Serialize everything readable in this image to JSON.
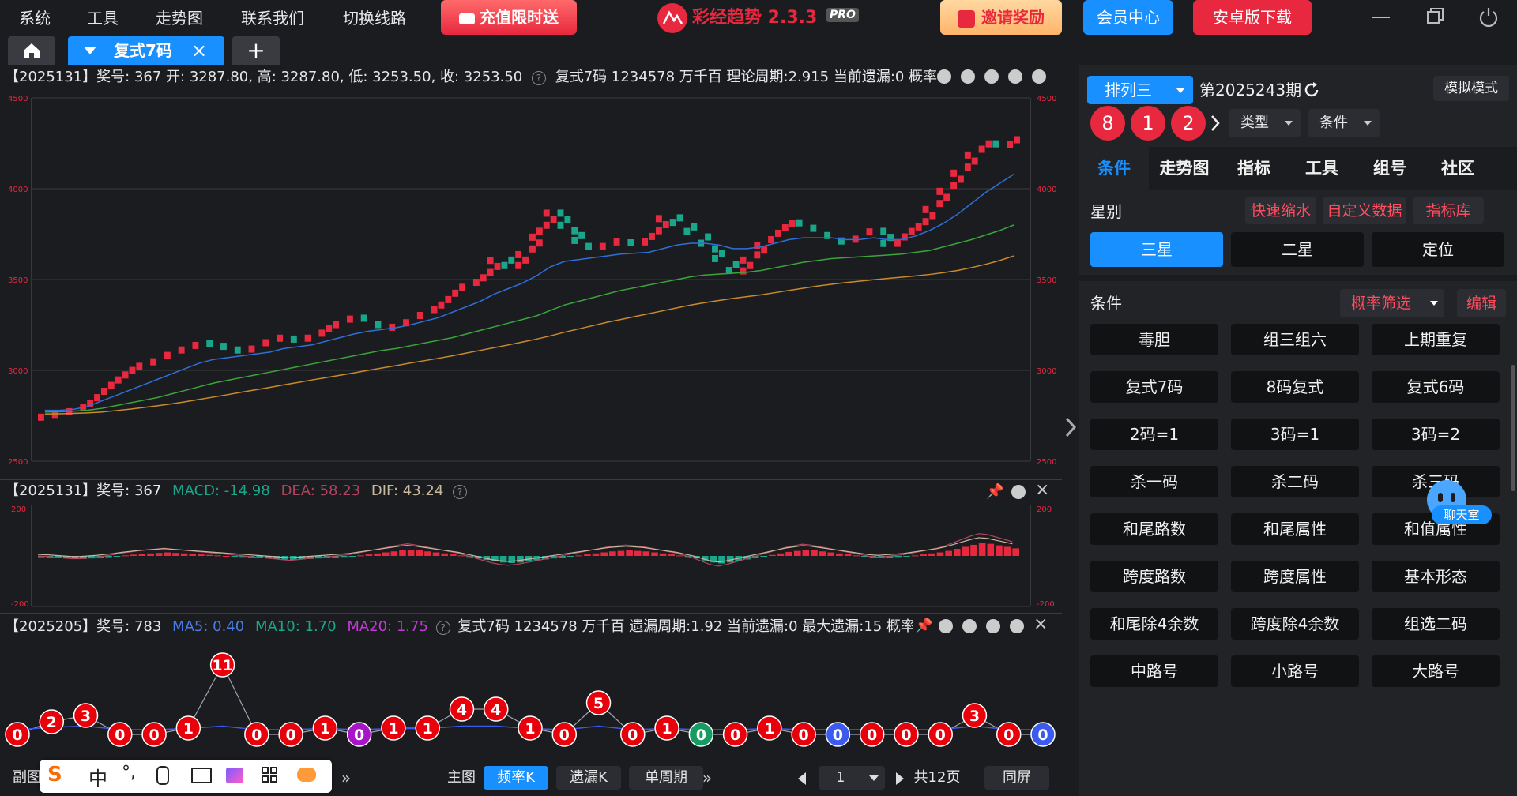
{
  "menu": [
    "系统",
    "工具",
    "走势图",
    "联系我们",
    "切换线路"
  ],
  "promo_recharge": "充值限时送",
  "app_title": "彩经趋势 2.3.3",
  "app_badge": "PRO",
  "promo_invite": "邀请奖励",
  "member_center": "会员中心",
  "android_download": "安卓版下载",
  "tabs": {
    "active_label": "复式7码",
    "add_label": "+"
  },
  "main_chart": {
    "header": "【2025131】奖号: 367  开: 3287.80, 高: 3287.80, 低: 3253.50, 收: 3253.50",
    "header_right": "复式7码  1234578  万千百  理论周期:2.915  当前遗漏:0  概率:",
    "y_ticks": [
      "4500",
      "4000",
      "3500",
      "3000",
      "2500"
    ]
  },
  "macd_chart": {
    "header_prefix": "【2025131】奖号: 367",
    "macd": "MACD: -14.98",
    "dea": "DEA: 58.23",
    "dif": "DIF: 43.24",
    "y_ticks": [
      "200",
      "-200"
    ]
  },
  "omit_chart": {
    "header_prefix": "【2025205】奖号: 783",
    "ma5": "MA5: 0.40",
    "ma10": "MA10: 1.70",
    "ma20": "MA20: 1.75",
    "header_right": "复式7码  1234578  万千百  遗漏周期:1.92  当前遗漏:0  最大遗漏:15  概率:"
  },
  "chart_data": [
    {
      "type": "line",
      "title": "",
      "y_ticks": [
        2500,
        3000,
        3500,
        4000,
        4500
      ],
      "ylim": [
        2500,
        4500
      ],
      "series": [
        {
          "values": [
            2750,
            2760,
            2780,
            2830,
            2900,
            2960,
            3010,
            3030,
            3060,
            3100,
            3120,
            3150,
            3140,
            3120,
            3100,
            3130,
            3170,
            3180,
            3160,
            3190,
            3240,
            3260,
            3300,
            3270,
            3230,
            3240,
            3280,
            3320,
            3370,
            3440,
            3470,
            3520,
            3620,
            3560,
            3650,
            3780,
            3880,
            3780,
            3700,
            3660,
            3700,
            3710,
            3690,
            3750,
            3850,
            3800,
            3750,
            3680,
            3600,
            3530,
            3620,
            3700,
            3770,
            3820,
            3800,
            3760,
            3720,
            3700,
            3740,
            3780,
            3680,
            3750,
            3800,
            3900,
            4000,
            4100,
            4200,
            4260,
            4230,
            4280
          ]
        },
        {
          "values": [
            2780,
            2780,
            2785,
            2800,
            2830,
            2860,
            2890,
            2920,
            2950,
            2980,
            3010,
            3040,
            3060,
            3070,
            3080,
            3090,
            3100,
            3120,
            3130,
            3140,
            3160,
            3180,
            3200,
            3215,
            3225,
            3235,
            3250,
            3270,
            3290,
            3320,
            3350,
            3380,
            3420,
            3450,
            3480,
            3520,
            3570,
            3600,
            3610,
            3620,
            3630,
            3640,
            3645,
            3650,
            3670,
            3690,
            3700,
            3700,
            3690,
            3670,
            3670,
            3680,
            3700,
            3720,
            3730,
            3730,
            3730,
            3720,
            3720,
            3730,
            3720,
            3720,
            3740,
            3770,
            3810,
            3860,
            3920,
            3980,
            4030,
            4080
          ]
        },
        {
          "values": [
            2770,
            2772,
            2775,
            2780,
            2790,
            2805,
            2820,
            2835,
            2850,
            2870,
            2890,
            2910,
            2930,
            2945,
            2960,
            2975,
            2990,
            3005,
            3020,
            3035,
            3050,
            3065,
            3080,
            3095,
            3110,
            3120,
            3135,
            3150,
            3165,
            3180,
            3200,
            3220,
            3240,
            3260,
            3280,
            3300,
            3330,
            3360,
            3380,
            3400,
            3420,
            3440,
            3455,
            3470,
            3485,
            3500,
            3515,
            3525,
            3530,
            3535,
            3540,
            3550,
            3565,
            3580,
            3595,
            3605,
            3615,
            3620,
            3625,
            3630,
            3635,
            3640,
            3650,
            3660,
            3680,
            3700,
            3720,
            3745,
            3770,
            3800
          ]
        },
        {
          "values": [
            2760,
            2761,
            2763,
            2766,
            2770,
            2778,
            2786,
            2795,
            2805,
            2815,
            2827,
            2840,
            2853,
            2866,
            2880,
            2893,
            2906,
            2920,
            2933,
            2947,
            2960,
            2973,
            2986,
            3000,
            3013,
            3026,
            3040,
            3053,
            3066,
            3080,
            3095,
            3110,
            3125,
            3140,
            3156,
            3172,
            3190,
            3210,
            3228,
            3246,
            3264,
            3280,
            3296,
            3312,
            3328,
            3344,
            3360,
            3373,
            3385,
            3396,
            3406,
            3416,
            3428,
            3440,
            3452,
            3464,
            3474,
            3483,
            3491,
            3499,
            3506,
            3513,
            3520,
            3528,
            3538,
            3550,
            3566,
            3584,
            3605,
            3630
          ]
        }
      ]
    },
    {
      "type": "bar",
      "title": "",
      "y_ticks": [
        -200,
        200
      ],
      "ylim": [
        -200,
        200
      ],
      "values": [
        -5,
        -6,
        -8,
        -10,
        -12,
        -12,
        -10,
        -8,
        -5,
        -2,
        2,
        5,
        8,
        10,
        12,
        14,
        12,
        10,
        8,
        6,
        4,
        2,
        0,
        -2,
        -4,
        -6,
        -8,
        -10,
        -12,
        -14,
        -16,
        -14,
        -12,
        -10,
        -8,
        -6,
        -4,
        -2,
        2,
        6,
        10,
        14,
        18,
        22,
        25,
        22,
        18,
        14,
        10,
        6,
        2,
        -4,
        -10,
        -16,
        -22,
        -26,
        -28,
        -26,
        -22,
        -18,
        -14,
        -10,
        -6,
        -2,
        2,
        6,
        10,
        14,
        18,
        20,
        22,
        20,
        18,
        14,
        10,
        6,
        2,
        -4,
        -10,
        -18,
        -26,
        -30,
        -26,
        -20,
        -14,
        -8,
        -2,
        4,
        10,
        16,
        20,
        24,
        22,
        18,
        14,
        10,
        6,
        2,
        -2,
        -6,
        -8,
        -6,
        -4,
        -2,
        2,
        6,
        10,
        14,
        20,
        28,
        36,
        44,
        50,
        48,
        42,
        36,
        30
      ]
    },
    {
      "type": "line",
      "title": "",
      "x_label_values": [
        0,
        2,
        3,
        0,
        0,
        1,
        11,
        0,
        0,
        1,
        0,
        1,
        1,
        4,
        4,
        1,
        0,
        5,
        0,
        1,
        0,
        0,
        1,
        0,
        0,
        0,
        0,
        0,
        3,
        0,
        0
      ],
      "ball_colors": [
        "red",
        "red",
        "red",
        "red",
        "red",
        "red",
        "red",
        "red",
        "red",
        "red",
        "purple",
        "red",
        "red",
        "red",
        "red",
        "red",
        "red",
        "red",
        "red",
        "red",
        "green",
        "red",
        "red",
        "red",
        "blue",
        "red",
        "red",
        "red",
        "red",
        "red",
        "blue"
      ]
    }
  ],
  "bottom": {
    "sub_label": "副图",
    "main_label": "主图",
    "freq_k": "频率K",
    "omit_k": "遗漏K",
    "single_period": "单周期",
    "page_value": "1",
    "total_pages": "共12页",
    "same_screen": "同屏"
  },
  "ime": {
    "lang": "中",
    "punct": "°,"
  },
  "right_panel": {
    "lottery_select": "排列三",
    "period": "第2025243期",
    "sim_mode": "模拟模式",
    "balls": [
      "8",
      "1",
      "2"
    ],
    "type_select": "类型",
    "cond_select": "条件",
    "nav_tabs": [
      "条件",
      "走势图",
      "指标",
      "工具",
      "组号",
      "社区"
    ],
    "star_label": "星别",
    "quick_shrink": "快速缩水",
    "custom_data": "自定义数据",
    "indicator_lib": "指标库",
    "star_options": [
      "三星",
      "二星",
      "定位"
    ],
    "cond_label": "条件",
    "prob_filter": "概率筛选",
    "edit": "编辑",
    "cond_grid": [
      [
        "毒胆",
        "组三组六",
        "上期重复"
      ],
      [
        "复式7码",
        "8码复式",
        "复式6码"
      ],
      [
        "2码=1",
        "3码=1",
        "3码=2"
      ],
      [
        "杀一码",
        "杀二码",
        "杀三码"
      ],
      [
        "和尾路数",
        "和尾属性",
        "和值属性"
      ],
      [
        "跨度路数",
        "跨度属性",
        "基本形态"
      ],
      [
        "和尾除4余数",
        "跨度除4余数",
        "组选二码"
      ],
      [
        "中路号",
        "小路号",
        "大路号"
      ]
    ],
    "chat": "聊天室"
  },
  "colors": {
    "up": "#e8283f",
    "down": "#1aa68a",
    "accent": "#1890ff",
    "bg": "#1b1c20"
  }
}
